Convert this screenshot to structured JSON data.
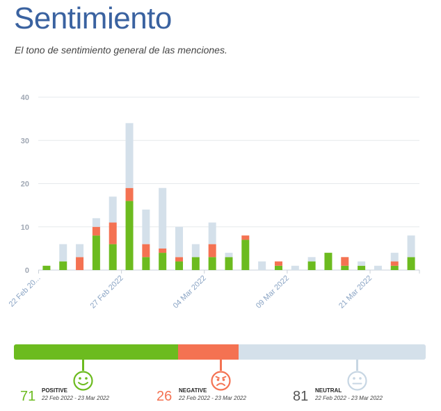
{
  "header": {
    "title": "Sentimiento",
    "subtitle": "El tono de sentimiento general de las menciones."
  },
  "colors": {
    "positive": "#6cbb1f",
    "negative": "#f47252",
    "neutral": "#d4e0ea",
    "title": "#3a62a0"
  },
  "chart_data": {
    "type": "bar",
    "stacked": true,
    "ylim": [
      0,
      40
    ],
    "yticks": [
      "0",
      "10",
      "20",
      "30",
      "40"
    ],
    "grid": true,
    "xtick_labels": [
      {
        "label": "22 Feb 20...",
        "index": 0
      },
      {
        "label": "27 Feb 2022",
        "index": 5
      },
      {
        "label": "04 Mar 2022",
        "index": 10
      },
      {
        "label": "09 Mar 2022",
        "index": 15
      },
      {
        "label": "21 Mar 2022",
        "index": 20
      }
    ],
    "series": [
      {
        "key": "positive",
        "values": [
          1,
          2,
          0,
          8,
          6,
          16,
          3,
          4,
          2,
          3,
          3,
          3,
          7,
          0,
          1,
          0,
          2,
          4,
          1,
          1,
          0,
          1,
          3
        ]
      },
      {
        "key": "negative",
        "values": [
          0,
          0,
          3,
          2,
          5,
          3,
          3,
          1,
          1,
          0,
          3,
          0,
          1,
          0,
          1,
          0,
          0,
          0,
          2,
          0,
          0,
          1,
          0
        ]
      },
      {
        "key": "neutral",
        "values": [
          0,
          4,
          3,
          2,
          6,
          15,
          8,
          14,
          7,
          3,
          5,
          1,
          0,
          2,
          0,
          1,
          1,
          0,
          0,
          1,
          1,
          2,
          5
        ]
      }
    ]
  },
  "summary": [
    {
      "key": "positive",
      "count": "71",
      "label": "POSITIVE",
      "range": "22 Feb 2022 - 23 Mar 2022",
      "face": "smile-icon"
    },
    {
      "key": "negative",
      "count": "26",
      "label": "NEGATIVE",
      "range": "22 Feb 2022 - 23 Mar 2022",
      "face": "angry-face-icon"
    },
    {
      "key": "neutral",
      "count": "81",
      "label": "NEUTRAL",
      "range": "22 Feb 2022 - 23 Mar 2022",
      "face": "neutral-face-icon"
    }
  ]
}
